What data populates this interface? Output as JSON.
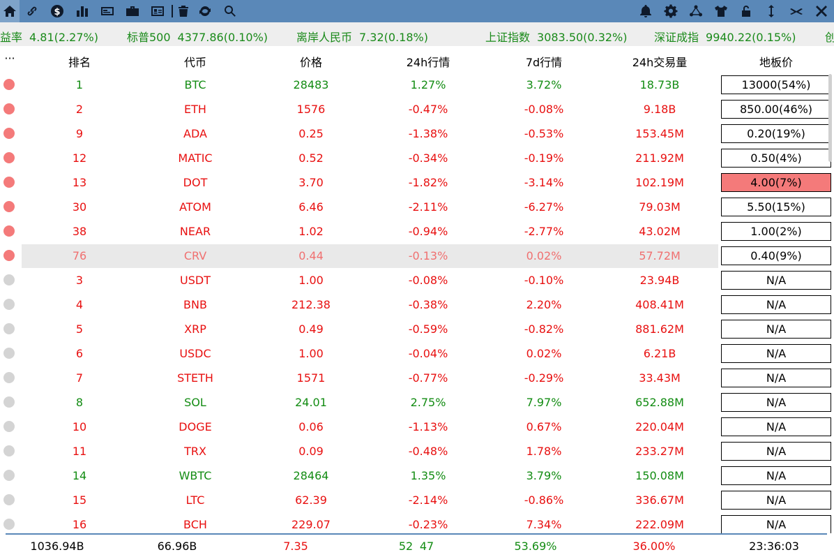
{
  "toolbar": {
    "left_icons": [
      "home-icon",
      "link-icon",
      "dollar-icon",
      "bar-chart-icon",
      "card-icon",
      "briefcase-icon",
      "id-card-icon",
      "trash-icon",
      "refresh-icon",
      "search-icon"
    ],
    "right_icons": [
      "bell-icon",
      "gear-icon",
      "network-icon",
      "shirt-icon",
      "unlock-icon",
      "resize-vertical-icon",
      "minimize-icon",
      "close-icon"
    ]
  },
  "ticker": [
    {
      "name": "益率",
      "value": "4.81(2.27%)"
    },
    {
      "name": "标普500",
      "value": "4377.86(0.10%)"
    },
    {
      "name": "离岸人民币",
      "value": "7.32(0.18%)"
    },
    {
      "name": "上证指数",
      "value": "3083.50(0.32%)"
    },
    {
      "name": "深证成指",
      "value": "9940.22(0.15%)"
    },
    {
      "name": "创",
      "value": ""
    }
  ],
  "header": {
    "menu": "···",
    "rank": "排名",
    "coin": "代币",
    "price": "价格",
    "change24h": "24h行情",
    "change7d": "7d行情",
    "volume24h": "24h交易量",
    "floor": "地板价"
  },
  "colors": {
    "toolbar": "#5a88b8",
    "up": "#138c13",
    "down": "#e81010",
    "dot_active": "#f47a7a",
    "dot_inactive": "#d4d4d4",
    "floor_alert": "#f47a7a"
  },
  "rows": [
    {
      "rank": "1",
      "coin": "BTC",
      "price": "28483",
      "c24": "1.27%",
      "c7": "3.72%",
      "vol": "18.73B",
      "floor": "13000(54%)",
      "dot": "red",
      "color": "green",
      "hl": false,
      "alert": false
    },
    {
      "rank": "2",
      "coin": "ETH",
      "price": "1576",
      "c24": "-0.47%",
      "c7": "-0.08%",
      "vol": "9.18B",
      "floor": "850.00(46%)",
      "dot": "red",
      "color": "red",
      "hl": false,
      "alert": false
    },
    {
      "rank": "9",
      "coin": "ADA",
      "price": "0.25",
      "c24": "-1.38%",
      "c7": "-0.53%",
      "vol": "153.45M",
      "floor": "0.20(19%)",
      "dot": "red",
      "color": "red",
      "hl": false,
      "alert": false
    },
    {
      "rank": "12",
      "coin": "MATIC",
      "price": "0.52",
      "c24": "-0.34%",
      "c7": "-0.19%",
      "vol": "211.92M",
      "floor": "0.50(4%)",
      "dot": "red",
      "color": "red",
      "hl": false,
      "alert": false
    },
    {
      "rank": "13",
      "coin": "DOT",
      "price": "3.70",
      "c24": "-1.82%",
      "c7": "-3.14%",
      "vol": "102.19M",
      "floor": "4.00(7%)",
      "dot": "red",
      "color": "red",
      "hl": false,
      "alert": true
    },
    {
      "rank": "30",
      "coin": "ATOM",
      "price": "6.46",
      "c24": "-2.11%",
      "c7": "-6.27%",
      "vol": "79.03M",
      "floor": "5.50(15%)",
      "dot": "red",
      "color": "red",
      "hl": false,
      "alert": false
    },
    {
      "rank": "38",
      "coin": "NEAR",
      "price": "1.02",
      "c24": "-0.94%",
      "c7": "-2.77%",
      "vol": "43.02M",
      "floor": "1.00(2%)",
      "dot": "red",
      "color": "red",
      "hl": false,
      "alert": false
    },
    {
      "rank": "76",
      "coin": "CRV",
      "price": "0.44",
      "c24": "-0.13%",
      "c7": "0.02%",
      "vol": "57.72M",
      "floor": "0.40(9%)",
      "dot": "red",
      "color": "faded",
      "hl": true,
      "alert": false
    },
    {
      "rank": "3",
      "coin": "USDT",
      "price": "1.00",
      "c24": "-0.08%",
      "c7": "-0.10%",
      "vol": "23.94B",
      "floor": "N/A",
      "dot": "grey",
      "color": "red",
      "hl": false,
      "alert": false
    },
    {
      "rank": "4",
      "coin": "BNB",
      "price": "212.38",
      "c24": "-0.38%",
      "c7": "2.20%",
      "vol": "408.41M",
      "floor": "N/A",
      "dot": "grey",
      "color": "red",
      "hl": false,
      "alert": false
    },
    {
      "rank": "5",
      "coin": "XRP",
      "price": "0.49",
      "c24": "-0.59%",
      "c7": "-0.82%",
      "vol": "881.62M",
      "floor": "N/A",
      "dot": "grey",
      "color": "red",
      "hl": false,
      "alert": false
    },
    {
      "rank": "6",
      "coin": "USDC",
      "price": "1.00",
      "c24": "-0.04%",
      "c7": "0.02%",
      "vol": "6.21B",
      "floor": "N/A",
      "dot": "grey",
      "color": "red",
      "hl": false,
      "alert": false
    },
    {
      "rank": "7",
      "coin": "STETH",
      "price": "1571",
      "c24": "-0.77%",
      "c7": "-0.29%",
      "vol": "33.43M",
      "floor": "N/A",
      "dot": "grey",
      "color": "red",
      "hl": false,
      "alert": false
    },
    {
      "rank": "8",
      "coin": "SOL",
      "price": "24.01",
      "c24": "2.75%",
      "c7": "7.97%",
      "vol": "652.88M",
      "floor": "N/A",
      "dot": "grey",
      "color": "green",
      "hl": false,
      "alert": false
    },
    {
      "rank": "10",
      "coin": "DOGE",
      "price": "0.06",
      "c24": "-1.13%",
      "c7": "0.67%",
      "vol": "220.04M",
      "floor": "N/A",
      "dot": "grey",
      "color": "red",
      "hl": false,
      "alert": false
    },
    {
      "rank": "11",
      "coin": "TRX",
      "price": "0.09",
      "c24": "-0.48%",
      "c7": "1.78%",
      "vol": "233.27M",
      "floor": "N/A",
      "dot": "grey",
      "color": "red",
      "hl": false,
      "alert": false
    },
    {
      "rank": "14",
      "coin": "WBTC",
      "price": "28464",
      "c24": "1.35%",
      "c7": "3.79%",
      "vol": "150.08M",
      "floor": "N/A",
      "dot": "grey",
      "color": "green",
      "hl": false,
      "alert": false
    },
    {
      "rank": "15",
      "coin": "LTC",
      "price": "62.39",
      "c24": "-2.14%",
      "c7": "-0.86%",
      "vol": "336.67M",
      "floor": "N/A",
      "dot": "grey",
      "color": "red",
      "hl": false,
      "alert": false
    },
    {
      "rank": "16",
      "coin": "BCH",
      "price": "229.07",
      "c24": "-0.23%",
      "c7": "7.34%",
      "vol": "222.09M",
      "floor": "N/A",
      "dot": "grey",
      "color": "red",
      "hl": false,
      "alert": false
    }
  ],
  "footer": {
    "total_market_cap": "1036.94B",
    "total_volume": "66.96B",
    "value_3": "7.35",
    "up_count": "52",
    "down_count": "47",
    "pct_1": "53.69%",
    "pct_2": "36.00%",
    "time": "23:36:03"
  }
}
